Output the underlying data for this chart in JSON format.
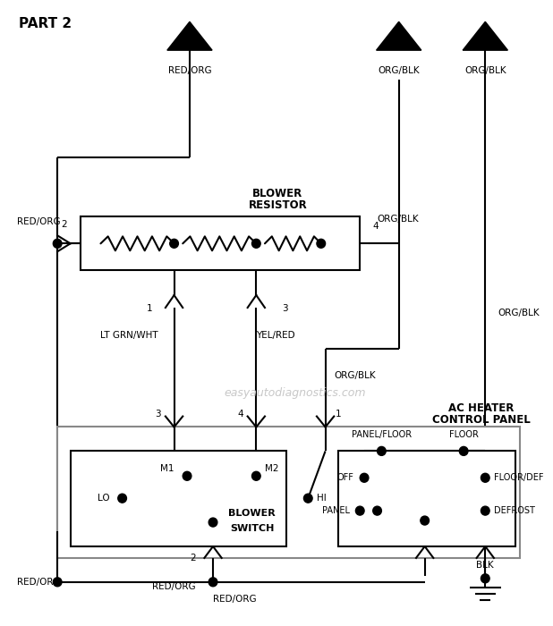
{
  "bg_color": "#ffffff",
  "line_color": "#000000",
  "lw": 1.5,
  "title": "PART 2",
  "watermark": "easyautodiagnostics.com",
  "conn_A": [
    0.285,
    0.935
  ],
  "conn_B": [
    0.595,
    0.935
  ],
  "conn_C": [
    0.745,
    0.935
  ],
  "tri_size": 0.038
}
